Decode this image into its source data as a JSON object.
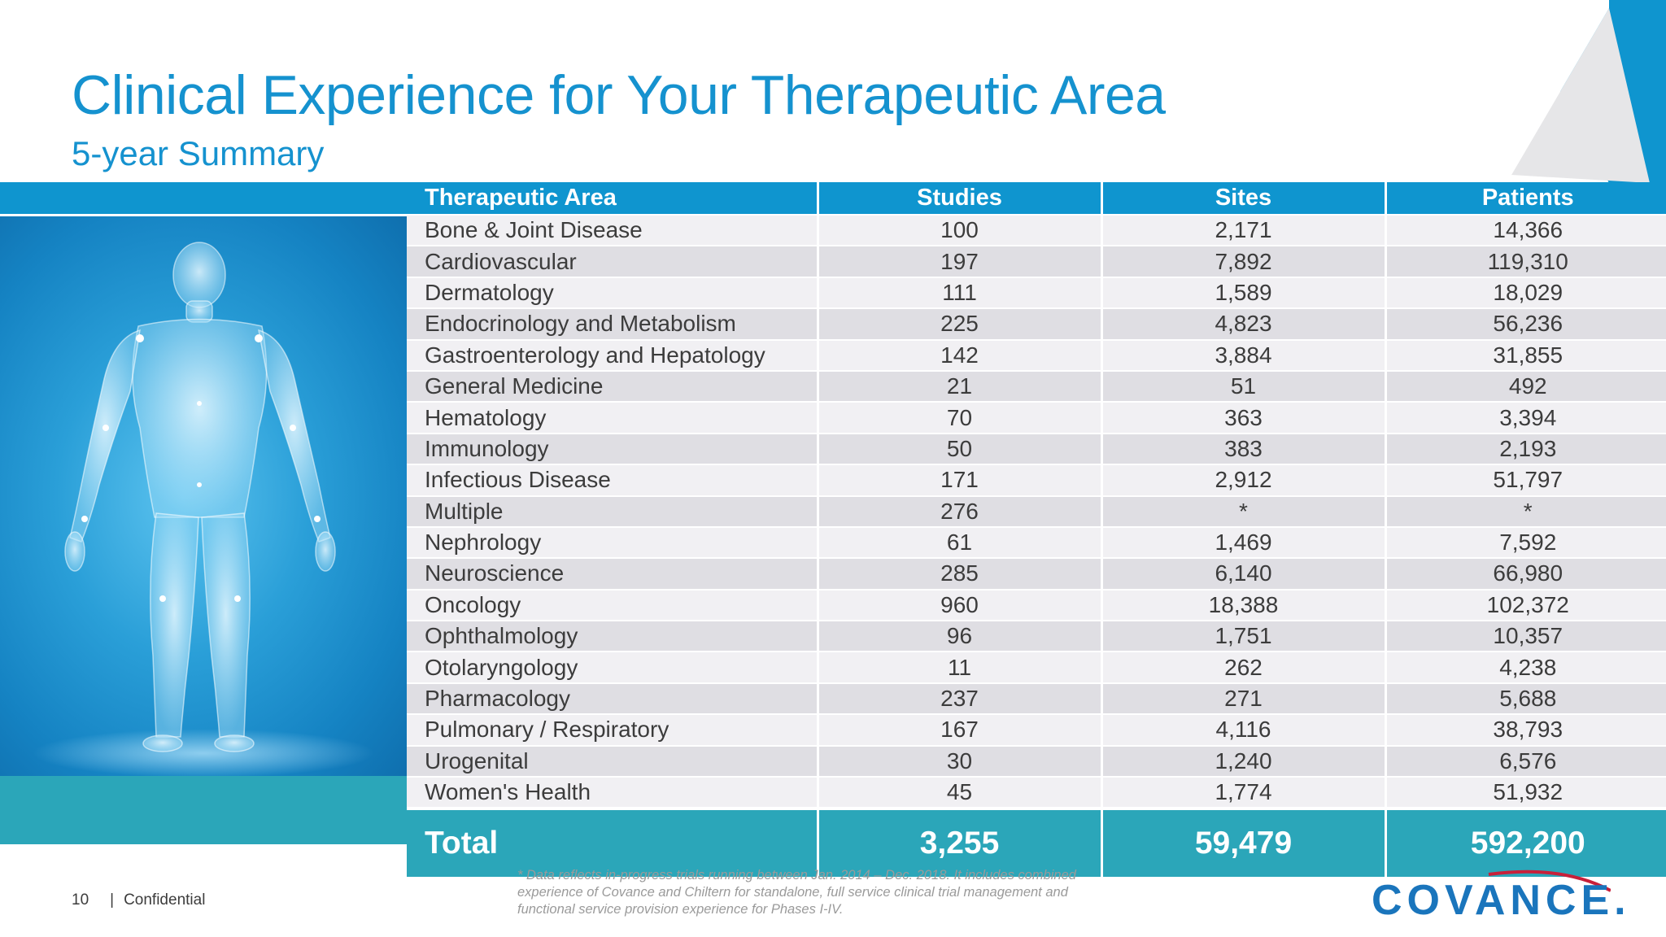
{
  "header": {
    "title": "Clinical Experience for Your Therapeutic Area",
    "subtitle": "5-year Summary"
  },
  "table": {
    "columns": [
      "Therapeutic Area",
      "Studies",
      "Sites",
      "Patients"
    ],
    "rows": [
      {
        "area": "Bone & Joint Disease",
        "studies": "100",
        "sites": "2,171",
        "patients": "14,366"
      },
      {
        "area": "Cardiovascular",
        "studies": "197",
        "sites": "7,892",
        "patients": "119,310"
      },
      {
        "area": "Dermatology",
        "studies": "111",
        "sites": "1,589",
        "patients": "18,029"
      },
      {
        "area": "Endocrinology and Metabolism",
        "studies": "225",
        "sites": "4,823",
        "patients": "56,236"
      },
      {
        "area": "Gastroenterology and Hepatology",
        "studies": "142",
        "sites": "3,884",
        "patients": "31,855"
      },
      {
        "area": "General Medicine",
        "studies": "21",
        "sites": "51",
        "patients": "492"
      },
      {
        "area": "Hematology",
        "studies": "70",
        "sites": "363",
        "patients": "3,394"
      },
      {
        "area": "Immunology",
        "studies": "50",
        "sites": "383",
        "patients": "2,193"
      },
      {
        "area": "Infectious Disease",
        "studies": "171",
        "sites": "2,912",
        "patients": "51,797"
      },
      {
        "area": "Multiple",
        "studies": "276",
        "sites": "*",
        "patients": "*"
      },
      {
        "area": "Nephrology",
        "studies": "61",
        "sites": "1,469",
        "patients": "7,592"
      },
      {
        "area": "Neuroscience",
        "studies": "285",
        "sites": "6,140",
        "patients": "66,980"
      },
      {
        "area": "Oncology",
        "studies": "960",
        "sites": "18,388",
        "patients": "102,372"
      },
      {
        "area": "Ophthalmology",
        "studies": "96",
        "sites": "1,751",
        "patients": "10,357"
      },
      {
        "area": "Otolaryngology",
        "studies": "11",
        "sites": "262",
        "patients": "4,238"
      },
      {
        "area": "Pharmacology",
        "studies": "237",
        "sites": "271",
        "patients": "5,688"
      },
      {
        "area": "Pulmonary / Respiratory",
        "studies": "167",
        "sites": "4,116",
        "patients": "38,793"
      },
      {
        "area": "Urogenital",
        "studies": "30",
        "sites": "1,240",
        "patients": "6,576"
      },
      {
        "area": "Women's Health",
        "studies": "45",
        "sites": "1,774",
        "patients": "51,932"
      }
    ],
    "total": {
      "label": "Total",
      "studies": "3,255",
      "sites": "59,479",
      "patients": "592,200"
    }
  },
  "footer": {
    "page_number": "10",
    "separator": "|",
    "confidential": "Confidential",
    "footnote": "* Data reflects in-progress trials running between Jan. 2014 – Dec. 2018.  It includes combined experience of Covance and Chiltern for standalone, full service clinical trial management and functional service provision experience for Phases I-IV.",
    "logo_text": "COVANCE."
  },
  "colors": {
    "title": "#1592cf",
    "header_band": "#0f95cf",
    "total_band": "#2ba6b9",
    "row_light": "#f1f0f3",
    "row_dark": "#dfdee3",
    "logo": "#1a75bc",
    "logo_swoosh": "#c8203a"
  }
}
